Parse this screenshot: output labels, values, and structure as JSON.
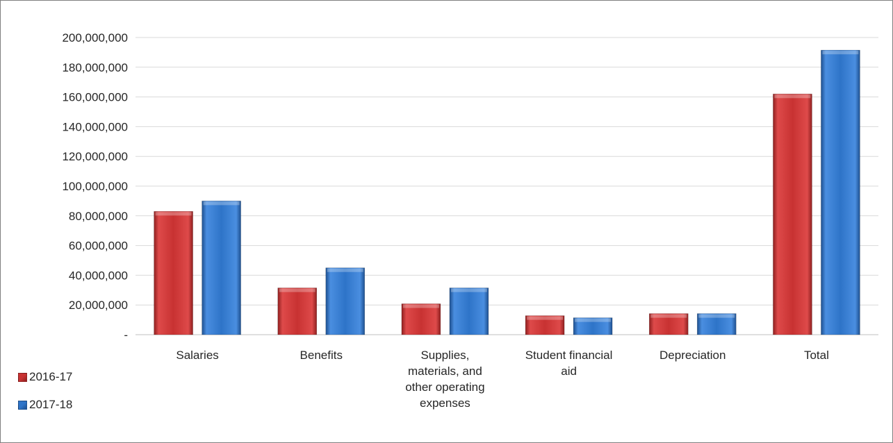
{
  "chart_data": {
    "type": "bar",
    "title": "",
    "xlabel": "",
    "ylabel": "",
    "categories": [
      "Salaries",
      "Benefits",
      "Supplies, materials, and other operating expenses",
      "Student financial aid",
      "Depreciation",
      "Total"
    ],
    "category_lines": [
      [
        "Salaries"
      ],
      [
        "Benefits"
      ],
      [
        "Supplies,",
        "materials, and",
        "other operating",
        "expenses"
      ],
      [
        "Student financial",
        "aid"
      ],
      [
        "Depreciation"
      ],
      [
        "Total"
      ]
    ],
    "series": [
      {
        "name": "2016-17",
        "color": "#c83232",
        "values": [
          83000000,
          31500000,
          20800000,
          12800000,
          14200000,
          162000000
        ]
      },
      {
        "name": "2017-18",
        "color": "#2e74c8",
        "values": [
          90000000,
          45000000,
          31500000,
          11400000,
          14200000,
          191500000
        ]
      }
    ],
    "ylim": [
      0,
      200000000
    ],
    "y_ticks": [
      0,
      20000000,
      40000000,
      60000000,
      80000000,
      100000000,
      120000000,
      140000000,
      160000000,
      180000000,
      200000000
    ],
    "y_tick_labels": [
      "-",
      "20,000,000",
      "40,000,000",
      "60,000,000",
      "80,000,000",
      "100,000,000",
      "120,000,000",
      "140,000,000",
      "160,000,000",
      "180,000,000",
      "200,000,000"
    ],
    "grid": true,
    "legend_position": "bottom-left"
  }
}
